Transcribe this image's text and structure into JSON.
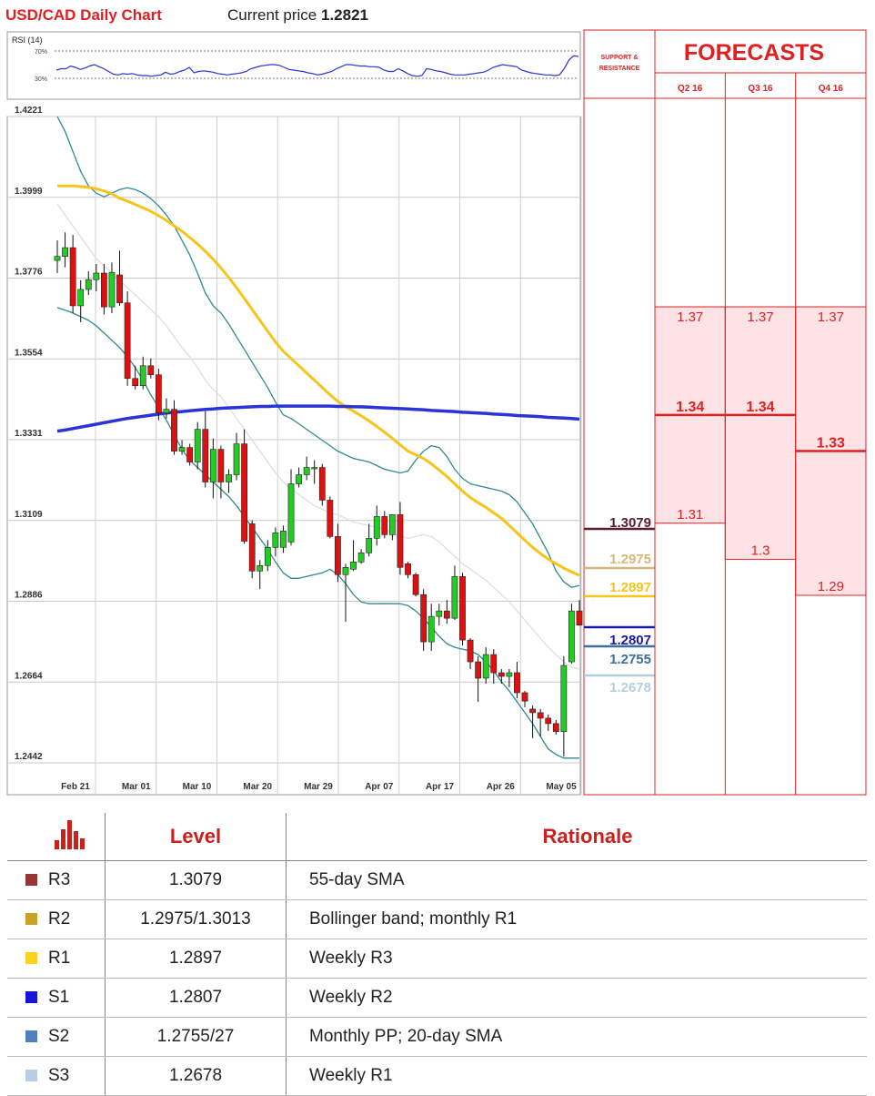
{
  "header": {
    "title": "USD/CAD Daily Chart",
    "price_label": "Current price",
    "price_value": "1.2821"
  },
  "rsi": {
    "label": "RSI (14)",
    "upper": "70%",
    "lower": "30%",
    "values": [
      42,
      44,
      44,
      48,
      46,
      43,
      45,
      48,
      50,
      47,
      44,
      40,
      36,
      35,
      37,
      36,
      37,
      35,
      34,
      34,
      33,
      34,
      35,
      39,
      36,
      37,
      40,
      42,
      46,
      38,
      40,
      41,
      40,
      39,
      37,
      36,
      35,
      36,
      37,
      38,
      40,
      44,
      46,
      48,
      49,
      50,
      50,
      49,
      46,
      43,
      42,
      41,
      40,
      38,
      37,
      35,
      36,
      38,
      40,
      44,
      47,
      50,
      50,
      49,
      48,
      48,
      47,
      47,
      46,
      42,
      40,
      40,
      44,
      41,
      37,
      34,
      33,
      34,
      44,
      43,
      41,
      40,
      38,
      36,
      35,
      35,
      35,
      36,
      37,
      38,
      39,
      42,
      46,
      48,
      50,
      49,
      48,
      47,
      42,
      40,
      38,
      37,
      36,
      35,
      35,
      34,
      35,
      44,
      57,
      63,
      62
    ]
  },
  "chart_data": {
    "type": "line",
    "title": "USD/CAD Daily Chart",
    "x_ticks": [
      "Feb 21",
      "Mar 01",
      "Mar 10",
      "Mar 20",
      "Mar 29",
      "Apr 07",
      "Apr 17",
      "Apr 26",
      "May 05"
    ],
    "y_ticks": [
      "1.4221",
      "1.3999",
      "1.3776",
      "1.3554",
      "1.3331",
      "1.3109",
      "1.2886",
      "1.2664",
      "1.2442"
    ],
    "ylim": [
      1.2442,
      1.4221
    ],
    "candles": [
      {
        "o": 1.3825,
        "h": 1.388,
        "l": 1.379,
        "c": 1.3836
      },
      {
        "o": 1.3836,
        "h": 1.3902,
        "l": 1.3806,
        "c": 1.386
      },
      {
        "o": 1.386,
        "h": 1.3895,
        "l": 1.368,
        "c": 1.37
      },
      {
        "o": 1.37,
        "h": 1.377,
        "l": 1.3655,
        "c": 1.3745
      },
      {
        "o": 1.3745,
        "h": 1.3795,
        "l": 1.373,
        "c": 1.3772
      },
      {
        "o": 1.3772,
        "h": 1.3815,
        "l": 1.374,
        "c": 1.379
      },
      {
        "o": 1.379,
        "h": 1.3815,
        "l": 1.3676,
        "c": 1.3697
      },
      {
        "o": 1.3697,
        "h": 1.3819,
        "l": 1.368,
        "c": 1.3792
      },
      {
        "o": 1.3785,
        "h": 1.3852,
        "l": 1.37,
        "c": 1.3708
      },
      {
        "o": 1.3708,
        "h": 1.374,
        "l": 1.348,
        "c": 1.35
      },
      {
        "o": 1.35,
        "h": 1.3535,
        "l": 1.347,
        "c": 1.348
      },
      {
        "o": 1.348,
        "h": 1.356,
        "l": 1.347,
        "c": 1.3535
      },
      {
        "o": 1.3535,
        "h": 1.3555,
        "l": 1.35,
        "c": 1.351
      },
      {
        "o": 1.351,
        "h": 1.3527,
        "l": 1.3385,
        "c": 1.3405
      },
      {
        "o": 1.3405,
        "h": 1.3445,
        "l": 1.339,
        "c": 1.3415
      },
      {
        "o": 1.3415,
        "h": 1.344,
        "l": 1.329,
        "c": 1.33
      },
      {
        "o": 1.33,
        "h": 1.333,
        "l": 1.329,
        "c": 1.331
      },
      {
        "o": 1.331,
        "h": 1.332,
        "l": 1.326,
        "c": 1.327
      },
      {
        "o": 1.327,
        "h": 1.338,
        "l": 1.325,
        "c": 1.336
      },
      {
        "o": 1.336,
        "h": 1.341,
        "l": 1.32,
        "c": 1.3215
      },
      {
        "o": 1.3215,
        "h": 1.3335,
        "l": 1.317,
        "c": 1.3305
      },
      {
        "o": 1.3305,
        "h": 1.3315,
        "l": 1.317,
        "c": 1.3215
      },
      {
        "o": 1.3215,
        "h": 1.325,
        "l": 1.3185,
        "c": 1.3235
      },
      {
        "o": 1.3235,
        "h": 1.335,
        "l": 1.322,
        "c": 1.332
      },
      {
        "o": 1.332,
        "h": 1.336,
        "l": 1.3045,
        "c": 1.3052
      },
      {
        "o": 1.31,
        "h": 1.311,
        "l": 1.295,
        "c": 1.297
      },
      {
        "o": 1.297,
        "h": 1.3,
        "l": 1.292,
        "c": 1.2985
      },
      {
        "o": 1.2985,
        "h": 1.3055,
        "l": 1.297,
        "c": 1.3035
      },
      {
        "o": 1.3035,
        "h": 1.309,
        "l": 1.301,
        "c": 1.3075
      },
      {
        "o": 1.3035,
        "h": 1.3095,
        "l": 1.302,
        "c": 1.308
      },
      {
        "o": 1.305,
        "h": 1.325,
        "l": 1.304,
        "c": 1.321
      },
      {
        "o": 1.321,
        "h": 1.3255,
        "l": 1.32,
        "c": 1.3235
      },
      {
        "o": 1.3235,
        "h": 1.3285,
        "l": 1.322,
        "c": 1.3255
      },
      {
        "o": 1.3255,
        "h": 1.3275,
        "l": 1.321,
        "c": 1.3255
      },
      {
        "o": 1.3255,
        "h": 1.3265,
        "l": 1.315,
        "c": 1.3165
      },
      {
        "o": 1.3165,
        "h": 1.3175,
        "l": 1.306,
        "c": 1.3065
      },
      {
        "o": 1.3065,
        "h": 1.31,
        "l": 1.294,
        "c": 1.296
      },
      {
        "o": 1.296,
        "h": 1.299,
        "l": 1.283,
        "c": 1.298
      },
      {
        "o": 1.2975,
        "h": 1.3055,
        "l": 1.297,
        "c": 1.2995
      },
      {
        "o": 1.2995,
        "h": 1.303,
        "l": 1.299,
        "c": 1.302
      },
      {
        "o": 1.302,
        "h": 1.31,
        "l": 1.301,
        "c": 1.306
      },
      {
        "o": 1.306,
        "h": 1.315,
        "l": 1.304,
        "c": 1.312
      },
      {
        "o": 1.312,
        "h": 1.3135,
        "l": 1.306,
        "c": 1.307
      },
      {
        "o": 1.307,
        "h": 1.3125,
        "l": 1.3055,
        "c": 1.3125
      },
      {
        "o": 1.3125,
        "h": 1.316,
        "l": 1.296,
        "c": 1.298
      },
      {
        "o": 1.299,
        "h": 1.2995,
        "l": 1.295,
        "c": 1.296
      },
      {
        "o": 1.296,
        "h": 1.2965,
        "l": 1.29,
        "c": 1.2905
      },
      {
        "o": 1.2905,
        "h": 1.292,
        "l": 1.275,
        "c": 1.2775
      },
      {
        "o": 1.2775,
        "h": 1.288,
        "l": 1.275,
        "c": 1.2845
      },
      {
        "o": 1.2845,
        "h": 1.288,
        "l": 1.282,
        "c": 1.286
      },
      {
        "o": 1.286,
        "h": 1.289,
        "l": 1.2825,
        "c": 1.284
      },
      {
        "o": 1.284,
        "h": 1.2985,
        "l": 1.2835,
        "c": 1.2955
      },
      {
        "o": 1.2955,
        "h": 1.2965,
        "l": 1.2765,
        "c": 1.278
      },
      {
        "o": 1.278,
        "h": 1.2785,
        "l": 1.27,
        "c": 1.272
      },
      {
        "o": 1.272,
        "h": 1.2735,
        "l": 1.261,
        "c": 1.2675
      },
      {
        "o": 1.2675,
        "h": 1.276,
        "l": 1.266,
        "c": 1.274
      },
      {
        "o": 1.274,
        "h": 1.2755,
        "l": 1.266,
        "c": 1.269
      },
      {
        "o": 1.269,
        "h": 1.27,
        "l": 1.266,
        "c": 1.268
      },
      {
        "o": 1.268,
        "h": 1.27,
        "l": 1.265,
        "c": 1.269
      },
      {
        "o": 1.269,
        "h": 1.272,
        "l": 1.262,
        "c": 1.2635
      },
      {
        "o": 1.2635,
        "h": 1.264,
        "l": 1.2595,
        "c": 1.2612
      },
      {
        "o": 1.259,
        "h": 1.26,
        "l": 1.251,
        "c": 1.258
      },
      {
        "o": 1.258,
        "h": 1.259,
        "l": 1.2515,
        "c": 1.2565
      },
      {
        "o": 1.2565,
        "h": 1.2575,
        "l": 1.253,
        "c": 1.255
      },
      {
        "o": 1.255,
        "h": 1.256,
        "l": 1.252,
        "c": 1.2528
      },
      {
        "o": 1.2528,
        "h": 1.2735,
        "l": 1.246,
        "c": 1.271
      },
      {
        "o": 1.272,
        "h": 1.288,
        "l": 1.2715,
        "c": 1.286
      },
      {
        "o": 1.286,
        "h": 1.289,
        "l": 1.282,
        "c": 1.2821
      }
    ],
    "series": [
      {
        "color": "#2a33d6",
        "values": [
          1.3355,
          1.3358,
          1.3362,
          1.3366,
          1.337,
          1.3374,
          1.3378,
          1.3382,
          1.3386,
          1.339,
          1.3393,
          1.3396,
          1.3399,
          1.3402,
          1.3405,
          1.3407,
          1.3409,
          1.3411,
          1.3413,
          1.3415,
          1.3416,
          1.3418,
          1.3419,
          1.342,
          1.3421,
          1.3422,
          1.3423,
          1.3423,
          1.3424,
          1.3424,
          1.3424,
          1.3424,
          1.3424,
          1.3424,
          1.3424,
          1.3424,
          1.3423,
          1.3423,
          1.3422,
          1.3422,
          1.3421,
          1.342,
          1.3419,
          1.3418,
          1.3417,
          1.3416,
          1.3415,
          1.3414,
          1.3412,
          1.3411,
          1.341,
          1.3409,
          1.3407,
          1.3406,
          1.3405,
          1.3404,
          1.3402,
          1.3401,
          1.34,
          1.3398,
          1.3397,
          1.3396,
          1.3395,
          1.3393,
          1.3392,
          1.3391,
          1.339,
          1.3388
        ]
      },
      {
        "color": "#f7c419",
        "values": [
          1.403,
          1.403,
          1.403,
          1.4028,
          1.4026,
          1.4022,
          1.4016,
          1.4008,
          1.3996,
          1.3988,
          1.3979,
          1.397,
          1.396,
          1.3948,
          1.3935,
          1.392,
          1.3905,
          1.3888,
          1.387,
          1.385,
          1.3828,
          1.3804,
          1.3778,
          1.375,
          1.372,
          1.369,
          1.366,
          1.363,
          1.36,
          1.3575,
          1.3555,
          1.3535,
          1.3515,
          1.3495,
          1.3475,
          1.3455,
          1.3437,
          1.3422,
          1.341,
          1.3397,
          1.3383,
          1.3368,
          1.3352,
          1.3335,
          1.3317,
          1.33,
          1.329,
          1.328,
          1.3265,
          1.3248,
          1.323,
          1.321,
          1.319,
          1.3172,
          1.3158,
          1.3145,
          1.313,
          1.3115,
          1.3095,
          1.3075,
          1.3055,
          1.3035,
          1.3018,
          1.3003,
          1.299,
          1.2978,
          1.2968,
          1.2958
        ]
      },
      {
        "color": "#2e8a8f",
        "values": [
          1.4221,
          1.418,
          1.4125,
          1.407,
          1.403,
          1.401,
          1.4,
          1.401,
          1.402,
          1.4025,
          1.402,
          1.401,
          1.3995,
          1.3975,
          1.395,
          1.392,
          1.388,
          1.384,
          1.379,
          1.3735,
          1.37,
          1.368,
          1.365,
          1.3615,
          1.358,
          1.3545,
          1.351,
          1.3475,
          1.3435,
          1.34,
          1.339,
          1.3375,
          1.336,
          1.3345,
          1.333,
          1.3315,
          1.33,
          1.329,
          1.328,
          1.3275,
          1.327,
          1.326,
          1.325,
          1.3245,
          1.324,
          1.3245,
          1.3275,
          1.33,
          1.3315,
          1.331,
          1.3285,
          1.325,
          1.3225,
          1.321,
          1.3205,
          1.32,
          1.3195,
          1.319,
          1.318,
          1.316,
          1.313,
          1.31,
          1.306,
          1.302,
          1.297,
          1.294,
          1.2925,
          1.293
        ]
      },
      {
        "color": "#2e8a8f",
        "values": [
          1.3695,
          1.3688,
          1.368,
          1.367,
          1.366,
          1.3645,
          1.3625,
          1.3605,
          1.3585,
          1.356,
          1.353,
          1.3495,
          1.3455,
          1.342,
          1.3385,
          1.3345,
          1.3305,
          1.3275,
          1.3255,
          1.3235,
          1.3215,
          1.3195,
          1.3175,
          1.315,
          1.312,
          1.309,
          1.306,
          1.303,
          1.2995,
          1.2965,
          1.295,
          1.295,
          1.2955,
          1.296,
          1.2965,
          1.2975,
          1.296,
          1.2935,
          1.2905,
          1.2885,
          1.288,
          1.288,
          1.288,
          1.288,
          1.288,
          1.2875,
          1.286,
          1.284,
          1.2815,
          1.279,
          1.277,
          1.276,
          1.2755,
          1.275,
          1.274,
          1.272,
          1.2695,
          1.2665,
          1.264,
          1.261,
          1.258,
          1.255,
          1.2515,
          1.248,
          1.2465,
          1.2455,
          1.2455,
          1.2455
        ]
      },
      {
        "color": "#dddddd",
        "values": [
          1.398,
          1.395,
          1.392,
          1.389,
          1.386,
          1.383,
          1.381,
          1.379,
          1.377,
          1.375,
          1.373,
          1.371,
          1.369,
          1.367,
          1.3645,
          1.3615,
          1.3585,
          1.356,
          1.353,
          1.3495,
          1.347,
          1.345,
          1.342,
          1.339,
          1.336,
          1.333,
          1.33,
          1.327,
          1.324,
          1.3215,
          1.3195,
          1.318,
          1.3165,
          1.315,
          1.314,
          1.313,
          1.3125,
          1.3115,
          1.3105,
          1.31,
          1.3095,
          1.309,
          1.3085,
          1.3075,
          1.3065,
          1.306,
          1.3065,
          1.307,
          1.3065,
          1.305,
          1.303,
          1.301,
          1.299,
          1.2975,
          1.296,
          1.2945,
          1.2925,
          1.2905,
          1.2885,
          1.286,
          1.2835,
          1.281,
          1.2785,
          1.276,
          1.274,
          1.272,
          1.2705,
          1.27
        ]
      }
    ]
  },
  "sr": {
    "header": "SUPPORT & RESISTANCE",
    "levels": [
      {
        "label": "1.3079",
        "value": 1.3079,
        "color": "#5a1d2c"
      },
      {
        "label": "1.2975",
        "value": 1.2975,
        "color": "#d9b77a"
      },
      {
        "label": "1.2897",
        "value": 1.2897,
        "color": "#f5c518"
      },
      {
        "label": "1.2807",
        "value": 1.2807,
        "color": "#1a1aa8"
      },
      {
        "label": "1.2755",
        "value": 1.2755,
        "color": "#3f6f9e"
      },
      {
        "label": "1.2678",
        "value": 1.2678,
        "color": "#b3d0d8"
      }
    ]
  },
  "forecasts": {
    "title": "FORECASTS",
    "columns": [
      {
        "label": "Q2 16",
        "high": "1.37",
        "mid": "1.34",
        "low": "1.31",
        "high_v": 1.37,
        "mid_v": 1.34,
        "low_v": 1.31
      },
      {
        "label": "Q3 16",
        "high": "1.37",
        "mid": "1.34",
        "low": "1.3",
        "high_v": 1.37,
        "mid_v": 1.34,
        "low_v": 1.3
      },
      {
        "label": "Q4 16",
        "high": "1.37",
        "mid": "1.33",
        "low": "1.29",
        "high_v": 1.37,
        "mid_v": 1.33,
        "low_v": 1.29
      }
    ]
  },
  "table": {
    "headers": {
      "level": "Level",
      "rationale": "Rationale"
    },
    "rows": [
      {
        "code": "R3",
        "level": "1.3079",
        "rationale": "55-day SMA",
        "color": "#953735"
      },
      {
        "code": "R2",
        "level": "1.2975/1.3013",
        "rationale": "Bollinger band; monthly R1",
        "color": "#c9a227"
      },
      {
        "code": "R1",
        "level": "1.2897",
        "rationale": "Weekly R3",
        "color": "#ffd21f"
      },
      {
        "code": "S1",
        "level": "1.2807",
        "rationale": "Weekly R2",
        "color": "#1616d6"
      },
      {
        "code": "S2",
        "level": "1.2755/27",
        "rationale": "Monthly PP; 20-day SMA",
        "color": "#4f81bd"
      },
      {
        "code": "S3",
        "level": "1.2678",
        "rationale": "Weekly R1",
        "color": "#b8cce4"
      }
    ]
  },
  "colors": {
    "up": "#22cc22",
    "down": "#dd1111",
    "accent": "#e02020",
    "forecast_fill": "#fde3e5"
  }
}
